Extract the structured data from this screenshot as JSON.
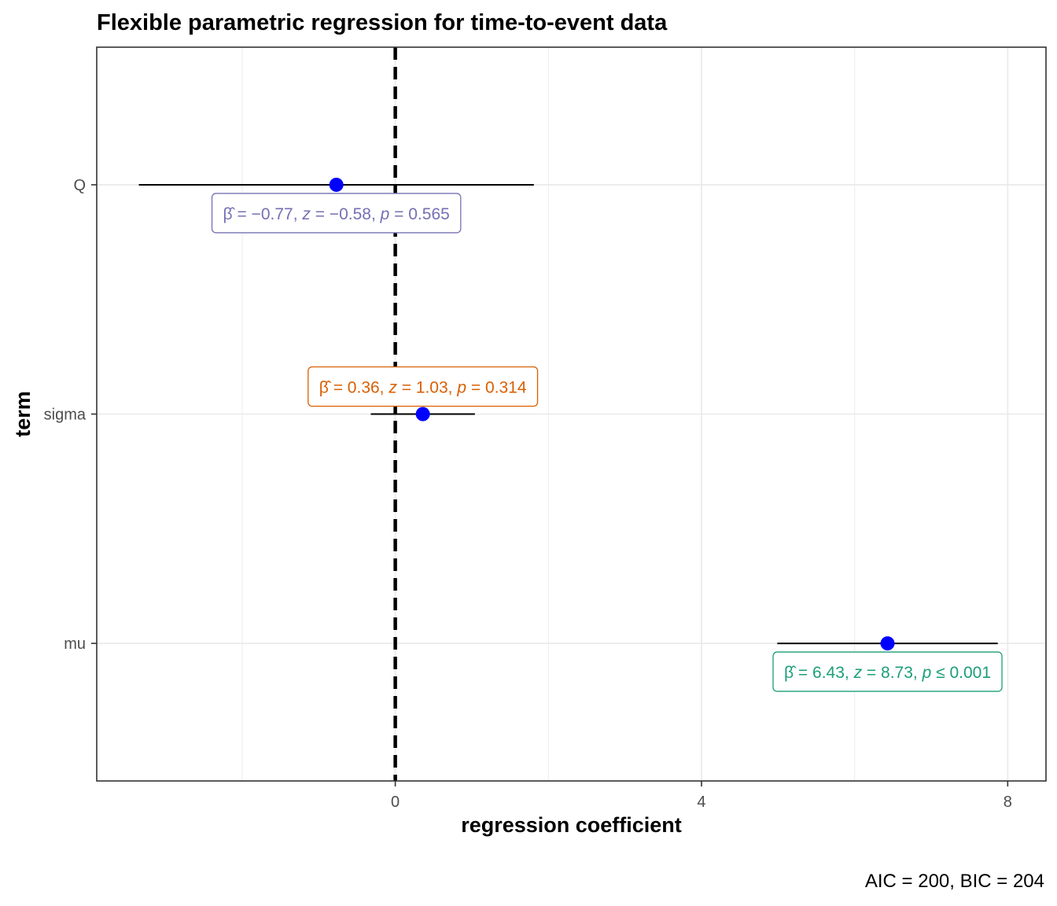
{
  "chart_data": {
    "type": "forest",
    "title": "Flexible parametric regression for time-to-event data",
    "xlabel": "regression coefficient",
    "ylabel": "term",
    "caption": "AIC = 200, BIC = 204",
    "xlim": [
      -3.9,
      8.5
    ],
    "x_ticks": [
      0,
      4,
      8
    ],
    "x_minor_ticks": [
      -2,
      2,
      6
    ],
    "grid": true,
    "reference_line": 0,
    "colors": {
      "point": "#0000ff",
      "reference": "#000000",
      "grid": "#ebebeb",
      "panel_border": "#333333"
    },
    "terms": [
      {
        "term": "Q",
        "estimate": -0.77,
        "conf_low": -3.35,
        "conf_high": 1.81,
        "label": {
          "beta": "-0.77",
          "z": "-0.58",
          "p_op": "=",
          "p": "0.565"
        },
        "label_position": "below",
        "color": "#7570b3"
      },
      {
        "term": "sigma",
        "estimate": 0.36,
        "conf_low": -0.32,
        "conf_high": 1.04,
        "label": {
          "beta": "0.36",
          "z": "1.03",
          "p_op": "=",
          "p": "0.314"
        },
        "label_position": "above",
        "color": "#d95f02"
      },
      {
        "term": "mu",
        "estimate": 6.43,
        "conf_low": 4.99,
        "conf_high": 7.87,
        "label": {
          "beta": "6.43",
          "z": "8.73",
          "p_op": "≤",
          "p": "0.001"
        },
        "label_position": "below",
        "color": "#1b9e77"
      }
    ]
  }
}
